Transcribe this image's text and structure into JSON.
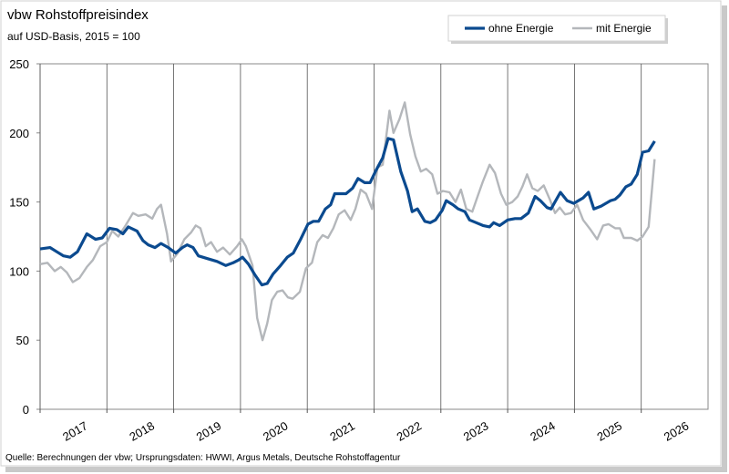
{
  "chart_data": {
    "type": "line",
    "title": "vbw Rohstoffpreisindex",
    "subtitle": "auf USD-Basis, 2015 = 100",
    "source": "Quelle: Berechnungen der vbw; Ursprungsdaten: HWWI, Argus Metals, Deutsche Rohstoffagentur",
    "legend": "top-right",
    "grid": true,
    "xlim": [
      2017,
      2027
    ],
    "xticks": [
      {
        "value": 2017,
        "label": "2017"
      },
      {
        "value": 2018,
        "label": "2018"
      },
      {
        "value": 2019,
        "label": "2019"
      },
      {
        "value": 2020,
        "label": "2020"
      },
      {
        "value": 2021,
        "label": "2021"
      },
      {
        "value": 2022,
        "label": "2022"
      },
      {
        "value": 2023,
        "label": "2023"
      },
      {
        "value": 2024,
        "label": "2024"
      },
      {
        "value": 2025,
        "label": "2025"
      },
      {
        "value": 2026,
        "label": "2026"
      }
    ],
    "ylim": [
      0,
      250
    ],
    "yticks": [
      0,
      50,
      100,
      150,
      200,
      250
    ],
    "series": [
      {
        "name": "ohne Energie",
        "color": "#0b4a8f",
        "width": 3.2,
        "x": [
          2017.0,
          2017.15,
          2017.25,
          2017.35,
          2017.45,
          2017.56,
          2017.7,
          2017.83,
          2017.93,
          2018.04,
          2018.15,
          2018.24,
          2018.32,
          2018.45,
          2018.54,
          2018.62,
          2018.72,
          2018.81,
          2018.92,
          2019.03,
          2019.13,
          2019.2,
          2019.29,
          2019.37,
          2019.51,
          2019.65,
          2019.78,
          2019.89,
          2019.97,
          2020.03,
          2020.12,
          2020.22,
          2020.32,
          2020.4,
          2020.49,
          2020.6,
          2020.7,
          2020.79,
          2020.9,
          2021.01,
          2021.09,
          2021.17,
          2021.27,
          2021.35,
          2021.41,
          2021.49,
          2021.58,
          2021.68,
          2021.76,
          2021.86,
          2021.94,
          2022.03,
          2022.13,
          2022.21,
          2022.29,
          2022.4,
          2022.5,
          2022.57,
          2022.65,
          2022.76,
          2022.84,
          2022.92,
          2023.02,
          2023.08,
          2023.18,
          2023.26,
          2023.36,
          2023.43,
          2023.53,
          2023.63,
          2023.73,
          2023.79,
          2023.88,
          2024.0,
          2024.11,
          2024.2,
          2024.31,
          2024.41,
          2024.49,
          2024.59,
          2024.65,
          2024.79,
          2024.89,
          2024.99,
          2025.13,
          2025.21,
          2025.29,
          2025.4,
          2025.54,
          2025.61,
          2025.68,
          2025.77,
          2025.85,
          2025.94,
          2026.02,
          2026.11,
          2026.2
        ],
        "values": [
          116,
          117,
          114,
          111,
          110,
          114,
          127,
          123,
          124,
          131,
          130,
          127,
          132,
          129,
          122,
          119,
          117,
          120,
          117,
          113,
          117,
          119,
          117,
          111,
          109,
          107,
          104,
          106,
          108,
          110,
          105,
          97,
          90,
          91,
          98,
          104,
          110,
          113,
          123,
          134,
          136,
          136,
          145,
          148,
          156,
          156,
          156,
          160,
          167,
          164,
          164,
          173,
          182,
          196,
          195,
          172,
          158,
          143,
          145,
          136,
          135,
          137,
          144,
          151,
          148,
          145,
          143,
          137,
          135,
          133,
          132,
          135,
          133,
          137,
          138,
          138,
          142,
          154,
          151,
          146,
          145,
          157,
          151,
          149,
          153,
          157,
          145,
          147,
          151,
          152,
          155,
          161,
          163,
          170,
          186,
          187,
          194
        ]
      },
      {
        "name": "mit Energie",
        "color": "#b4b7bb",
        "width": 2.4,
        "x": [
          2017.0,
          2017.11,
          2017.22,
          2017.31,
          2017.4,
          2017.49,
          2017.59,
          2017.7,
          2017.79,
          2017.9,
          2018.0,
          2018.08,
          2018.17,
          2018.28,
          2018.39,
          2018.47,
          2018.58,
          2018.68,
          2018.75,
          2018.81,
          2018.9,
          2018.96,
          2019.06,
          2019.16,
          2019.26,
          2019.33,
          2019.4,
          2019.48,
          2019.56,
          2019.65,
          2019.74,
          2019.84,
          2019.95,
          2020.02,
          2020.08,
          2020.18,
          2020.25,
          2020.33,
          2020.4,
          2020.47,
          2020.55,
          2020.63,
          2020.71,
          2020.78,
          2020.89,
          2020.98,
          2021.07,
          2021.15,
          2021.23,
          2021.31,
          2021.39,
          2021.47,
          2021.56,
          2021.65,
          2021.72,
          2021.8,
          2021.88,
          2021.97,
          2022.05,
          2022.13,
          2022.23,
          2022.29,
          2022.38,
          2022.46,
          2022.54,
          2022.62,
          2022.7,
          2022.78,
          2022.87,
          2022.95,
          2023.03,
          2023.13,
          2023.22,
          2023.3,
          2023.38,
          2023.47,
          2023.55,
          2023.63,
          2023.73,
          2023.81,
          2023.9,
          2023.98,
          2024.07,
          2024.15,
          2024.22,
          2024.29,
          2024.37,
          2024.45,
          2024.54,
          2024.63,
          2024.71,
          2024.78,
          2024.86,
          2024.95,
          2025.04,
          2025.13,
          2025.24,
          2025.34,
          2025.43,
          2025.51,
          2025.61,
          2025.68,
          2025.74,
          2025.85,
          2025.94,
          2026.02,
          2026.11,
          2026.2
        ],
        "values": [
          105,
          106,
          100,
          103,
          99,
          92,
          95,
          103,
          108,
          118,
          121,
          129,
          125,
          133,
          142,
          140,
          141,
          138,
          145,
          148,
          127,
          107,
          113,
          123,
          128,
          133,
          131,
          118,
          121,
          114,
          117,
          112,
          118,
          123,
          118,
          104,
          66,
          50,
          62,
          79,
          85,
          86,
          81,
          80,
          85,
          102,
          106,
          121,
          126,
          124,
          131,
          141,
          144,
          137,
          145,
          159,
          156,
          145,
          175,
          177,
          216,
          200,
          210,
          222,
          199,
          183,
          172,
          174,
          170,
          156,
          158,
          157,
          150,
          159,
          145,
          143,
          154,
          165,
          177,
          171,
          156,
          148,
          150,
          154,
          161,
          170,
          160,
          158,
          162,
          152,
          142,
          146,
          141,
          142,
          148,
          137,
          130,
          123,
          133,
          134,
          131,
          131,
          124,
          124,
          122,
          125,
          132,
          181
        ]
      }
    ]
  }
}
